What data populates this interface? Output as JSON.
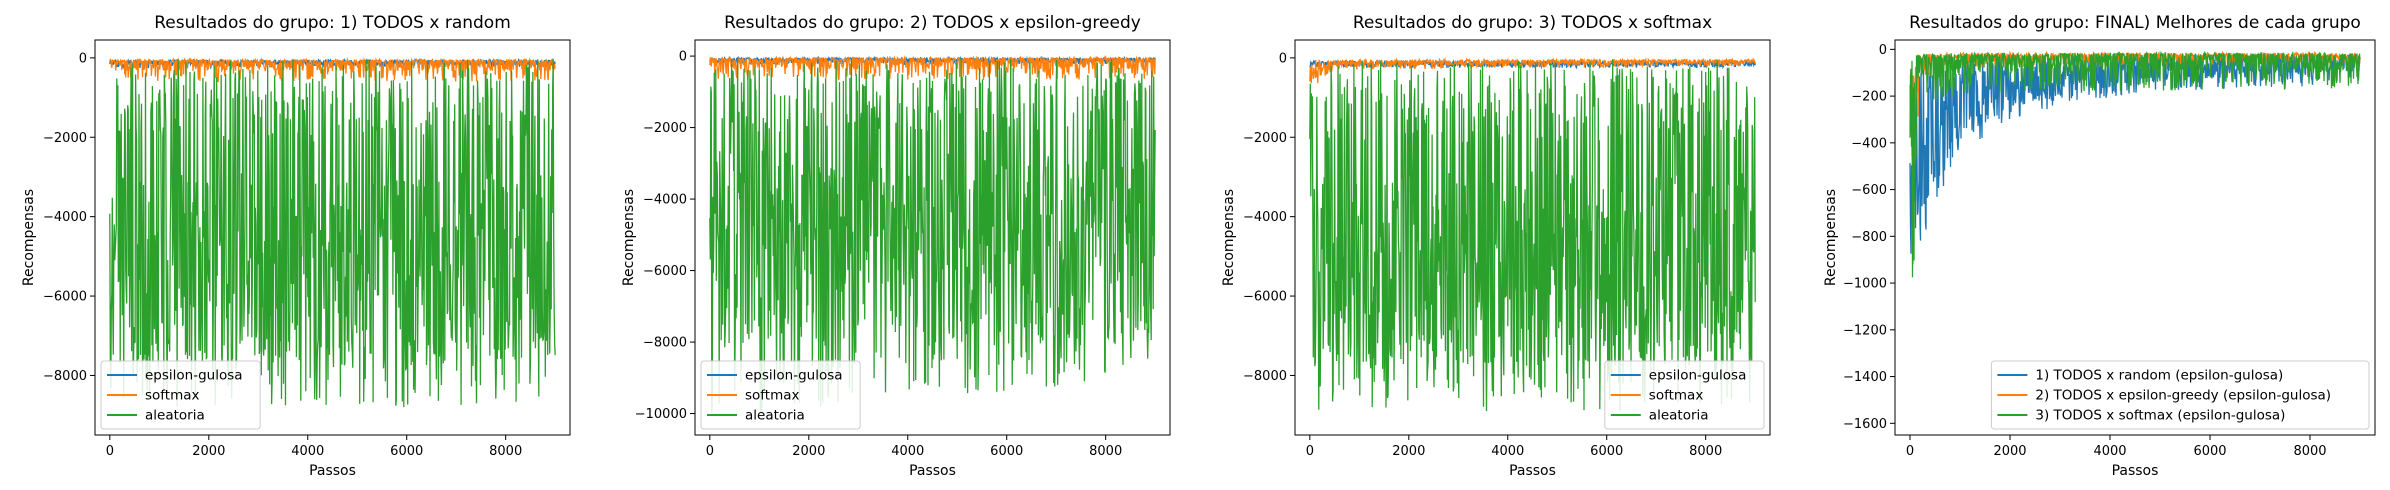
{
  "chart_data": [
    {
      "type": "line",
      "title": "Resultados do grupo: 1) TODOS x random",
      "xlabel": "Passos",
      "ylabel": "Recompensas",
      "xlim": [
        -300,
        9300
      ],
      "ylim": [
        -9500,
        450
      ],
      "xticks": [
        0,
        2000,
        4000,
        6000,
        8000
      ],
      "yticks": [
        -8000,
        -6000,
        -4000,
        -2000,
        0
      ],
      "legend_position": "lower-left",
      "series": [
        {
          "name": "epsilon-gulosa",
          "color": "#1f77b4",
          "profile": {
            "x": [
              0,
              9000
            ],
            "center": [
              -130,
              -130
            ],
            "low": [
              -260,
              -220
            ],
            "high": [
              -60,
              -50
            ]
          }
        },
        {
          "name": "softmax",
          "color": "#ff7f0e",
          "profile": {
            "x": [
              0,
              9000
            ],
            "center": [
              -180,
              -180
            ],
            "low": [
              -600,
              -600
            ],
            "high": [
              -40,
              -40
            ]
          }
        },
        {
          "name": "aleatoria",
          "color": "#2ca02c",
          "profile": {
            "x": [
              0,
              9000
            ],
            "center": [
              -5300,
              -5300
            ],
            "low": [
              -8800,
              -8800
            ],
            "high": [
              -30,
              -30
            ]
          }
        }
      ]
    },
    {
      "type": "line",
      "title": "Resultados do grupo: 2) TODOS x epsilon-greedy",
      "xlabel": "Passos",
      "ylabel": "Recompensas",
      "xlim": [
        -300,
        9300
      ],
      "ylim": [
        -10600,
        450
      ],
      "xticks": [
        0,
        2000,
        4000,
        6000,
        8000
      ],
      "yticks": [
        -10000,
        -8000,
        -6000,
        -4000,
        -2000,
        0
      ],
      "legend_position": "lower-left",
      "series": [
        {
          "name": "epsilon-gulosa",
          "color": "#1f77b4",
          "profile": {
            "x": [
              0,
              9000
            ],
            "center": [
              -120,
              -120
            ],
            "low": [
              -250,
              -220
            ],
            "high": [
              -50,
              -50
            ]
          }
        },
        {
          "name": "softmax",
          "color": "#ff7f0e",
          "profile": {
            "x": [
              0,
              9000
            ],
            "center": [
              -200,
              -200
            ],
            "low": [
              -700,
              -650
            ],
            "high": [
              -40,
              -40
            ]
          }
        },
        {
          "name": "aleatoria",
          "color": "#2ca02c",
          "profile": {
            "x": [
              0,
              9000
            ],
            "center": [
              -5300,
              -5300
            ],
            "low": [
              -10100,
              -9000
            ],
            "high": [
              -30,
              -30
            ]
          }
        }
      ]
    },
    {
      "type": "line",
      "title": "Resultados do grupo: 3) TODOS x softmax",
      "xlabel": "Passos",
      "ylabel": "Recompensas",
      "xlim": [
        -300,
        9300
      ],
      "ylim": [
        -9500,
        450
      ],
      "xticks": [
        0,
        2000,
        4000,
        6000,
        8000
      ],
      "yticks": [
        -8000,
        -6000,
        -4000,
        -2000,
        0
      ],
      "legend_position": "lower-right",
      "series": [
        {
          "name": "epsilon-gulosa",
          "color": "#1f77b4",
          "profile": {
            "x": [
              0,
              9000
            ],
            "center": [
              -150,
              -150
            ],
            "low": [
              -250,
              -250
            ],
            "high": [
              -80,
              -80
            ]
          }
        },
        {
          "name": "softmax",
          "color": "#ff7f0e",
          "profile": {
            "x": [
              0,
              500,
              9000
            ],
            "center": [
              -400,
              -150,
              -100
            ],
            "low": [
              -800,
              -300,
              -200
            ],
            "high": [
              -50,
              -40,
              -40
            ]
          }
        },
        {
          "name": "aleatoria",
          "color": "#2ca02c",
          "profile": {
            "x": [
              0,
              9000
            ],
            "center": [
              -5300,
              -5300
            ],
            "low": [
              -8900,
              -8900
            ],
            "high": [
              -30,
              -30
            ]
          }
        }
      ]
    },
    {
      "type": "line",
      "title": "Resultados do grupo: FINAL) Melhores de cada grupo",
      "xlabel": "Passos",
      "ylabel": "Recompensas",
      "xlim": [
        -300,
        9300
      ],
      "ylim": [
        -1650,
        40
      ],
      "xticks": [
        0,
        2000,
        4000,
        6000,
        8000
      ],
      "yticks": [
        -1600,
        -1400,
        -1200,
        -1000,
        -800,
        -600,
        -400,
        -200,
        0
      ],
      "legend_position": "lower-right",
      "series": [
        {
          "name": "1) TODOS x random (epsilon-gulosa)",
          "color": "#1f77b4",
          "profile": {
            "x": [
              0,
              300,
              1000,
              2000,
              3500,
              5000,
              9000
            ],
            "center": [
              -650,
              -480,
              -260,
              -170,
              -120,
              -90,
              -70
            ],
            "low": [
              -900,
              -800,
              -500,
              -300,
              -220,
              -180,
              -150
            ],
            "high": [
              -100,
              -60,
              -40,
              -30,
              -25,
              -20,
              -20
            ]
          }
        },
        {
          "name": "2) TODOS x epsilon-greedy (epsilon-gulosa)",
          "color": "#ff7f0e",
          "profile": {
            "x": [
              0,
              200,
              1000,
              9000
            ],
            "center": [
              -400,
              -60,
              -40,
              -35
            ],
            "low": [
              -1590,
              -150,
              -80,
              -60
            ],
            "high": [
              -30,
              -20,
              -15,
              -15
            ]
          }
        },
        {
          "name": "3) TODOS x softmax (epsilon-gulosa)",
          "color": "#2ca02c",
          "profile": {
            "x": [
              0,
              200,
              1000,
              3000,
              9000
            ],
            "center": [
              -300,
              -70,
              -60,
              -55,
              -55
            ],
            "low": [
              -1400,
              -230,
              -200,
              -180,
              -170
            ],
            "high": [
              -30,
              -20,
              -15,
              -15,
              -15
            ]
          }
        }
      ]
    }
  ]
}
